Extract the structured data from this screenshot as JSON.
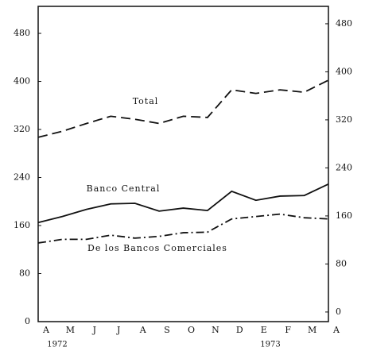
{
  "chart_data": {
    "type": "line",
    "categories": [
      "A",
      "M",
      "J",
      "J",
      "A",
      "S",
      "O",
      "N",
      "D",
      "E",
      "F",
      "M",
      "A"
    ],
    "year_labels": [
      "1972",
      "1973"
    ],
    "series": [
      {
        "name": "Total",
        "color": "#111111",
        "dash": "dashed",
        "values": [
          307,
          317,
          330,
          342,
          337,
          330,
          342,
          340,
          386,
          380,
          386,
          382,
          402
        ]
      },
      {
        "name": "Banco Central",
        "color": "#111111",
        "dash": "solid",
        "values": [
          165,
          175,
          187,
          196,
          197,
          184,
          189,
          185,
          217,
          202,
          209,
          210,
          229
        ]
      },
      {
        "name": "De los Bancos Comerciales",
        "color": "#111111",
        "dash": "dashdot",
        "values": [
          131,
          137,
          137,
          144,
          139,
          142,
          148,
          149,
          171,
          175,
          179,
          173,
          171
        ]
      }
    ],
    "ylim": [
      0,
      525
    ],
    "yticks": [
      0,
      80,
      160,
      240,
      320,
      400,
      480
    ],
    "y2lim": [
      -16,
      509
    ],
    "y2ticks": [
      0,
      80,
      160,
      240,
      320,
      400,
      480
    ]
  }
}
